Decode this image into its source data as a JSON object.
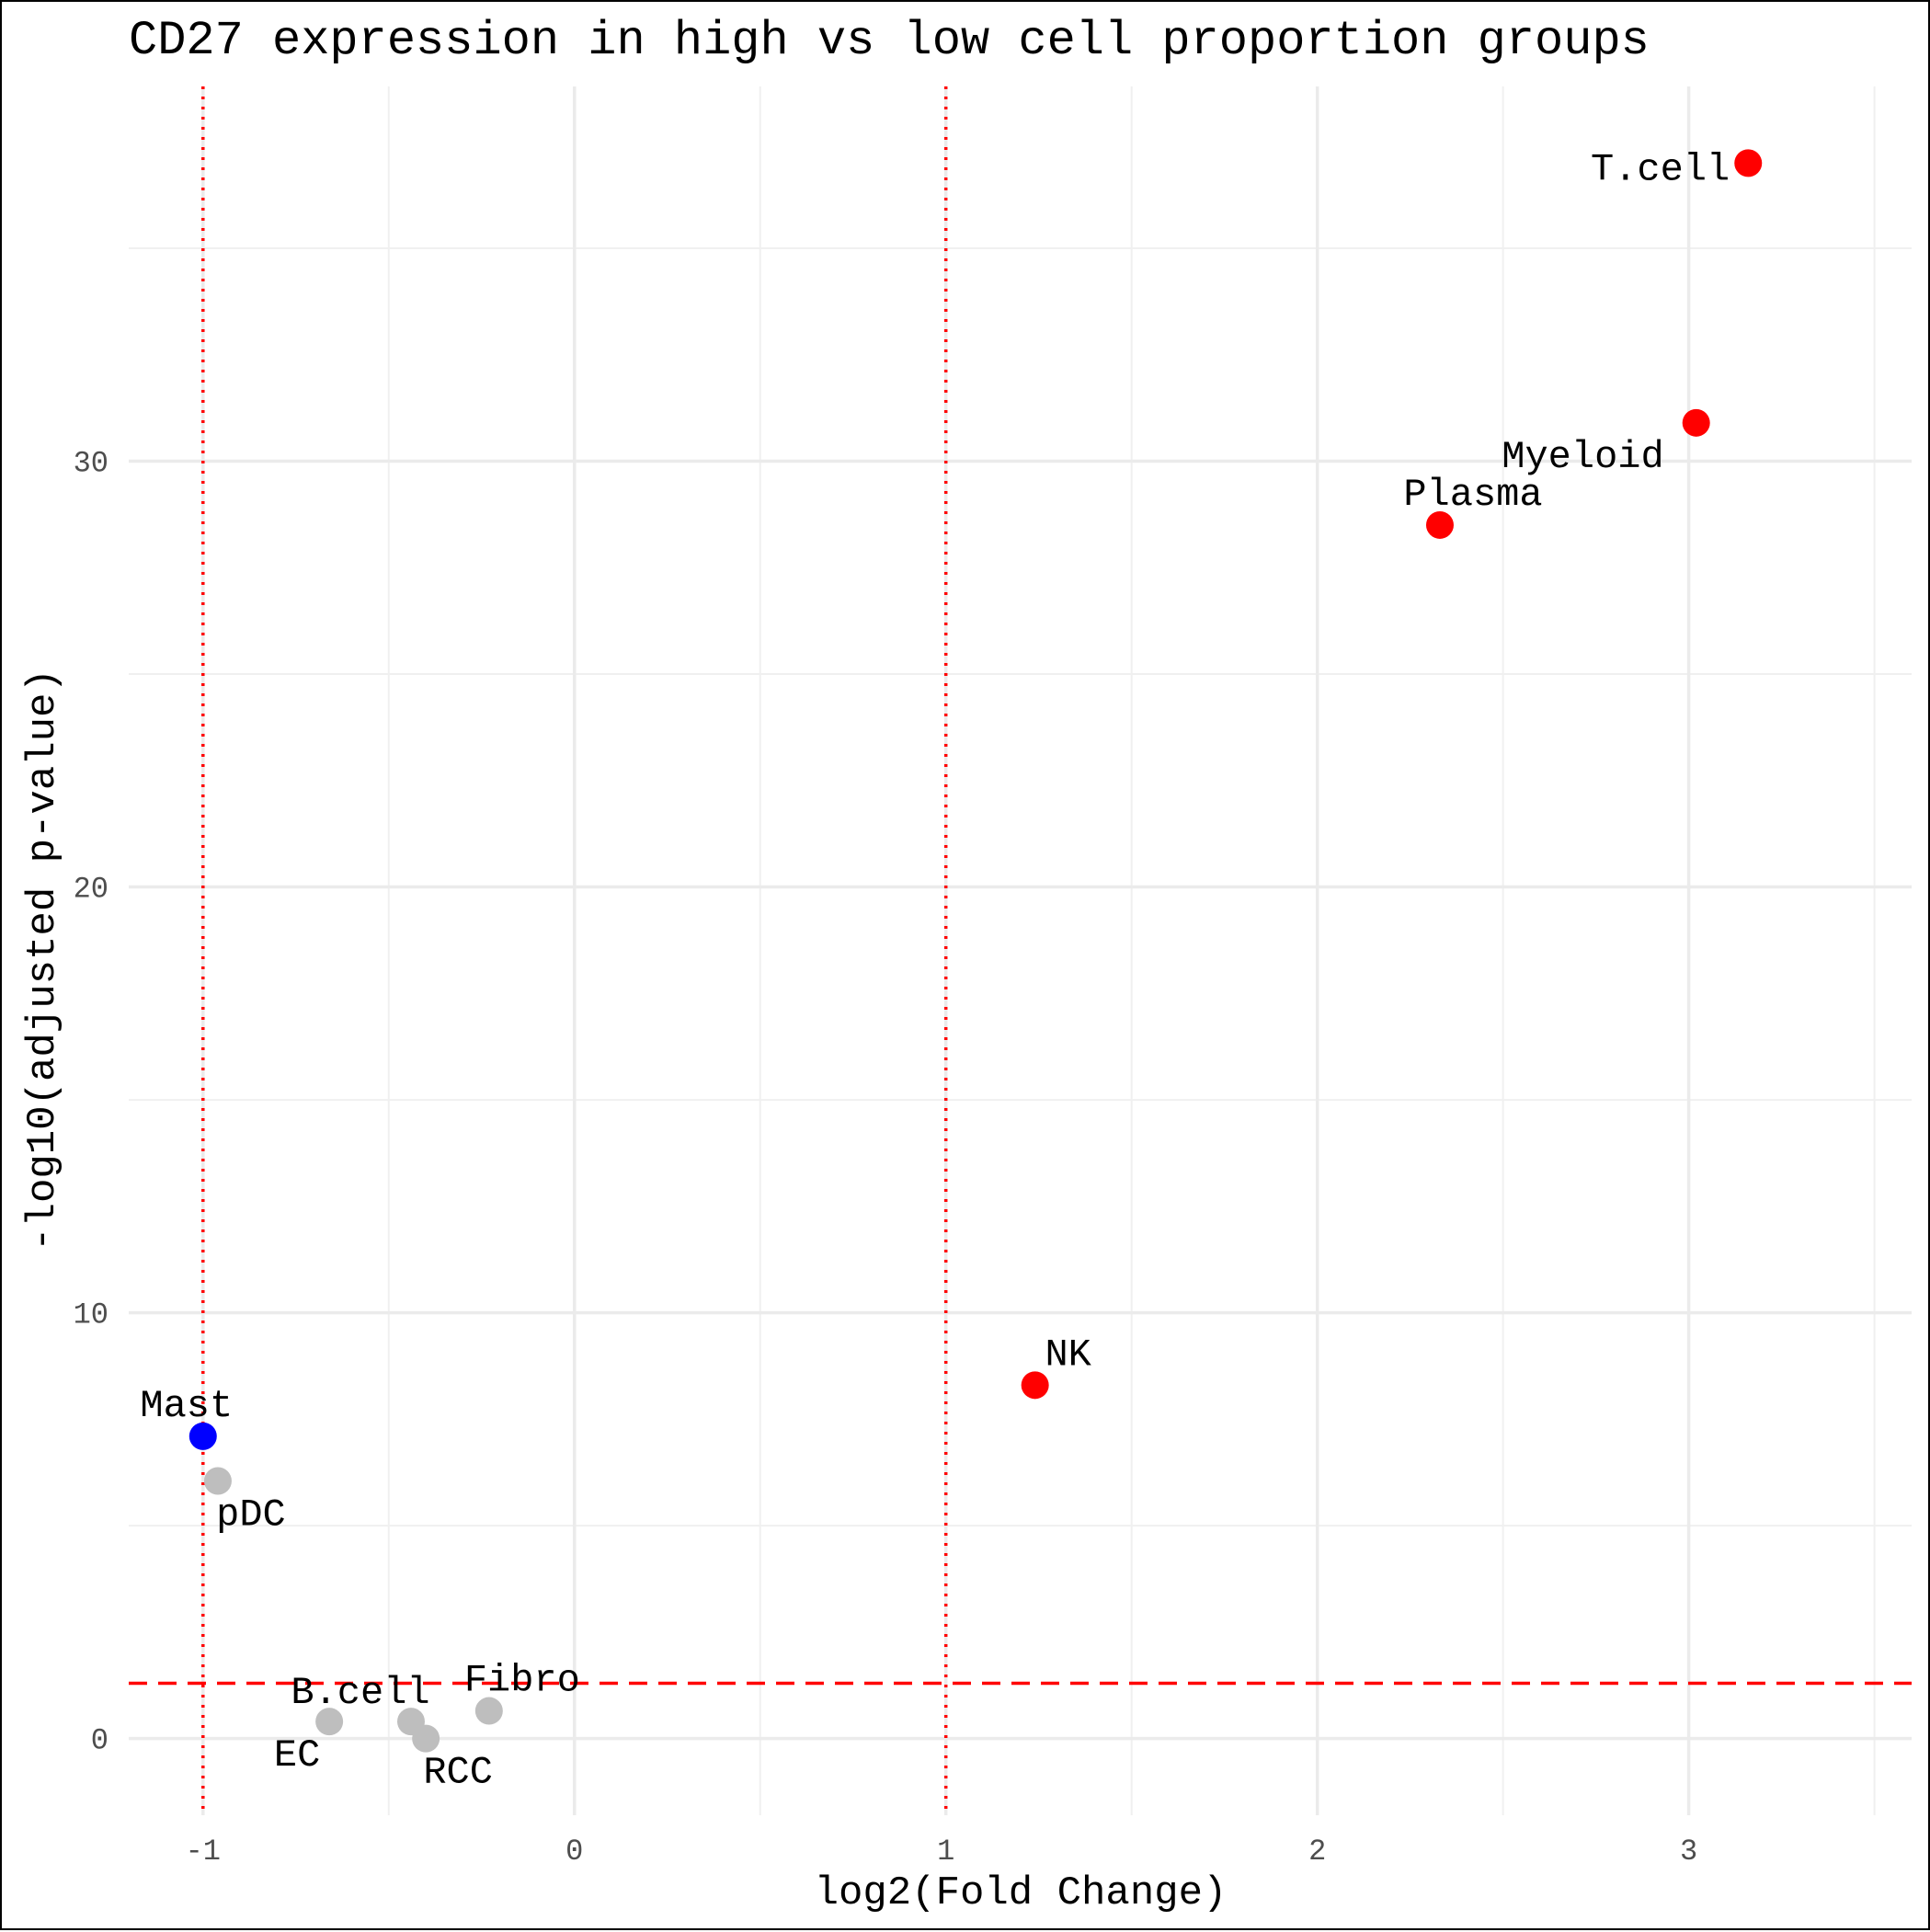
{
  "chart_data": {
    "type": "scatter",
    "title": "CD27 expression in high vs low cell proportion groups",
    "xlabel": "log2(Fold Change)",
    "ylabel": "-log10(adjusted p-value)",
    "xlim": [
      -1.2,
      3.6
    ],
    "ylim": [
      -1.8,
      38.8
    ],
    "x_ticks": [
      -1,
      0,
      1,
      2,
      3
    ],
    "x_tick_labels": [
      "-1",
      "0",
      "1",
      "2",
      "3"
    ],
    "y_ticks": [
      0,
      10,
      20,
      30
    ],
    "y_tick_labels": [
      "0",
      "10",
      "20",
      "30"
    ],
    "grid": true,
    "legend": "none",
    "thresholds": {
      "x": [
        -1,
        1
      ],
      "y": 1.3,
      "x_style": "dotted",
      "y_style": "dashed",
      "color": "#ff0000"
    },
    "colors": {
      "up": "#ff0000",
      "down": "#0000ff",
      "ns": "#bebebe"
    },
    "points": [
      {
        "label": "T.cell",
        "x": 3.16,
        "y": 37.0,
        "group": "up"
      },
      {
        "label": "Myeloid",
        "x": 3.02,
        "y": 30.9,
        "group": "up"
      },
      {
        "label": "Plasma",
        "x": 2.33,
        "y": 28.5,
        "group": "up"
      },
      {
        "label": "NK",
        "x": 1.24,
        "y": 8.3,
        "group": "up"
      },
      {
        "label": "Mast",
        "x": -1.0,
        "y": 7.1,
        "group": "down"
      },
      {
        "label": "pDC",
        "x": -0.96,
        "y": 6.05,
        "group": "ns"
      },
      {
        "label": "B.cell",
        "x": -0.44,
        "y": 0.4,
        "group": "ns"
      },
      {
        "label": "EC",
        "x": -0.66,
        "y": 0.4,
        "group": "ns"
      },
      {
        "label": "RCC",
        "x": -0.4,
        "y": 0.0,
        "group": "ns"
      },
      {
        "label": "Fibro",
        "x": -0.23,
        "y": 0.65,
        "group": "ns"
      }
    ]
  }
}
